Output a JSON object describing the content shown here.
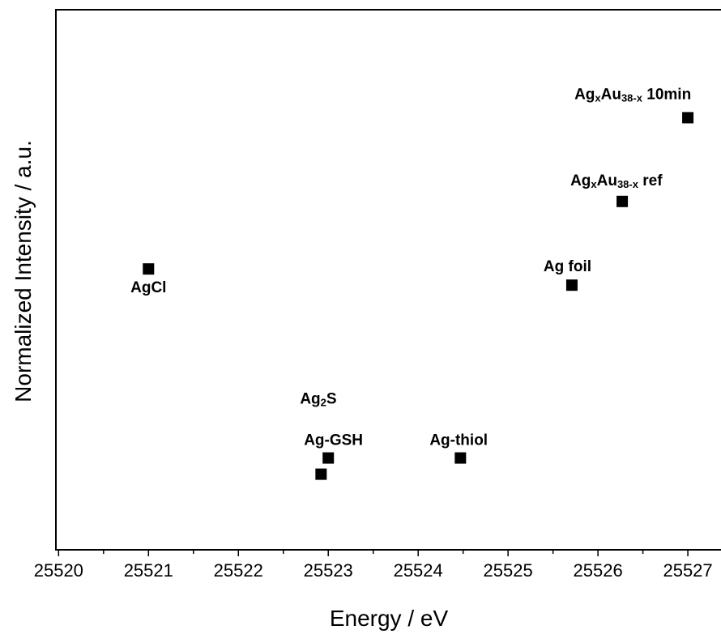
{
  "chart_data": {
    "type": "scatter",
    "title": "",
    "xlabel": "Energy / eV",
    "ylabel": "Normalized Intensity / a.u.",
    "xlim": [
      25519.97,
      25527.45
    ],
    "ylim": [
      0,
      1
    ],
    "x_ticks": [
      "25520",
      "25521",
      "25522",
      "25523",
      "25524",
      "25525",
      "25526",
      "25527"
    ],
    "y_ticks": [],
    "grid": false,
    "legend": "none",
    "marker": "square",
    "marker_color": "#000000",
    "points": [
      {
        "x": 25521.0,
        "y": 0.52,
        "label": "AgCl",
        "label_parts": [
          [
            "AgCl",
            ""
          ]
        ]
      },
      {
        "x": 25522.92,
        "y": 0.14,
        "label": "Ag2S",
        "label_parts": [
          [
            "Ag",
            ""
          ],
          [
            "2",
            "sub"
          ],
          [
            "S",
            ""
          ]
        ]
      },
      {
        "x": 25523.0,
        "y": 0.17,
        "label": "Ag-GSH",
        "label_parts": [
          [
            "Ag-GSH",
            ""
          ]
        ]
      },
      {
        "x": 25524.47,
        "y": 0.17,
        "label": "Ag-thiol",
        "label_parts": [
          [
            "Ag-thiol",
            ""
          ]
        ]
      },
      {
        "x": 25525.71,
        "y": 0.49,
        "label": "Ag foil",
        "label_parts": [
          [
            "Ag foil",
            ""
          ]
        ]
      },
      {
        "x": 25526.27,
        "y": 0.645,
        "label": "AgxAu38-x ref",
        "label_parts": [
          [
            "Ag",
            ""
          ],
          [
            "x",
            "sub"
          ],
          [
            "Au",
            ""
          ],
          [
            "38-x",
            "sub"
          ],
          [
            " ref",
            ""
          ]
        ]
      },
      {
        "x": 25527.0,
        "y": 0.8,
        "label": "AgxAu38-x 10min",
        "label_parts": [
          [
            "Ag",
            ""
          ],
          [
            "x",
            "sub"
          ],
          [
            "Au",
            ""
          ],
          [
            "38-x",
            "sub"
          ],
          [
            " 10min",
            ""
          ]
        ]
      }
    ]
  }
}
